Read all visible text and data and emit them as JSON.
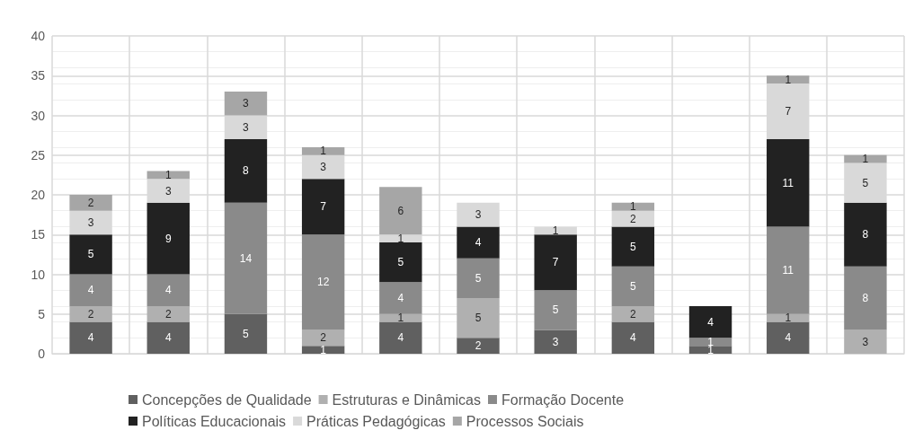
{
  "chart_data": {
    "type": "bar",
    "stacked": true,
    "grid": true,
    "legend": "bottom",
    "categories": [
      null,
      null,
      null,
      null,
      null,
      null,
      null,
      null,
      null,
      null,
      null
    ],
    "ylim": [
      0,
      40
    ],
    "yticks": [
      0,
      5,
      10,
      15,
      20,
      25,
      30,
      35,
      40
    ],
    "series": [
      {
        "name": "Concepções de Qualidade",
        "color": "#606060",
        "values": [
          4,
          4,
          5,
          1,
          4,
          2,
          3,
          4,
          1,
          4,
          0
        ],
        "value_labels": [
          "4",
          "4",
          "5",
          "1",
          "4",
          "2",
          "3",
          "4",
          "1",
          "4",
          null
        ]
      },
      {
        "name": "Estruturas e Dinâmicas",
        "color": "#b0b0b0",
        "values": [
          2,
          2,
          0,
          2,
          1,
          5,
          0,
          2,
          0,
          1,
          3
        ],
        "value_labels": [
          "2",
          "2",
          null,
          "2",
          "1",
          "5",
          null,
          "2",
          null,
          "1",
          "3"
        ]
      },
      {
        "name": "Formação Docente",
        "color": "#8a8a8a",
        "values": [
          4,
          4,
          14,
          12,
          4,
          5,
          5,
          5,
          1,
          11,
          8
        ],
        "value_labels": [
          "4",
          "4",
          "14",
          "12",
          "4",
          "5",
          "5",
          "5",
          "1",
          "11",
          "8"
        ]
      },
      {
        "name": "Políticas Educacionais",
        "color": "#222222",
        "values": [
          5,
          9,
          8,
          7,
          5,
          4,
          7,
          5,
          4,
          11,
          8
        ],
        "value_labels": [
          "5",
          "9",
          "8",
          "7",
          "5",
          "4",
          "7",
          "5",
          "4",
          "11",
          "8"
        ]
      },
      {
        "name": "Práticas Pedagógicas",
        "color": "#d9d9d9",
        "values": [
          3,
          3,
          3,
          3,
          1,
          3,
          1,
          2,
          0,
          7,
          5
        ],
        "value_labels": [
          "3",
          "3",
          "3",
          "3",
          "1",
          "3",
          "1",
          "2",
          null,
          "7",
          "5"
        ]
      },
      {
        "name": "Processos Sociais",
        "color": "#a6a6a6",
        "values": [
          2,
          1,
          3,
          1,
          6,
          0,
          0,
          1,
          0,
          1,
          1
        ],
        "value_labels": [
          "2",
          "1",
          "3",
          "1",
          "6",
          null,
          null,
          "1",
          null,
          "1",
          "1"
        ]
      }
    ]
  }
}
